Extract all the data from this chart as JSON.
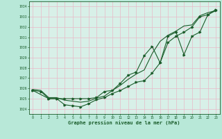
{
  "title": "Graphe pression niveau de la mer (hPa)",
  "background_color": "#b8e8d8",
  "plot_bg_color": "#d8f0e8",
  "grid_color": "#90c8b0",
  "line_color": "#1a5c2a",
  "xlim": [
    -0.5,
    23.5
  ],
  "ylim": [
    1023.5,
    1034.5
  ],
  "yticks": [
    1024,
    1025,
    1026,
    1027,
    1028,
    1029,
    1030,
    1031,
    1032,
    1033,
    1034
  ],
  "xticks": [
    0,
    1,
    2,
    3,
    4,
    5,
    6,
    7,
    8,
    9,
    10,
    11,
    12,
    13,
    14,
    15,
    16,
    17,
    18,
    19,
    20,
    21,
    22,
    23
  ],
  "series1_x": [
    0,
    1,
    2,
    3,
    4,
    5,
    6,
    7,
    8,
    9,
    10,
    11,
    12,
    13,
    14,
    15,
    16,
    17,
    18,
    19,
    20,
    21,
    22,
    23
  ],
  "series1_y": [
    1025.8,
    1025.7,
    1025.0,
    1025.0,
    1024.4,
    1024.3,
    1024.2,
    1024.5,
    1024.9,
    1025.1,
    1025.5,
    1025.8,
    1026.2,
    1026.6,
    1026.75,
    1027.5,
    1028.5,
    1030.5,
    1031.1,
    1031.5,
    1032.0,
    1033.0,
    1033.2,
    1033.6
  ],
  "series2_x": [
    0,
    1,
    2,
    3,
    4,
    5,
    6,
    7,
    8,
    9,
    10,
    11,
    12,
    13,
    14,
    15,
    16,
    17,
    18,
    19,
    20,
    21,
    22,
    23
  ],
  "series2_y": [
    1025.9,
    1025.8,
    1025.1,
    1025.1,
    1024.85,
    1024.75,
    1024.65,
    1024.75,
    1025.05,
    1025.25,
    1025.8,
    1026.3,
    1026.9,
    1027.4,
    1027.8,
    1029.4,
    1030.6,
    1031.2,
    1031.6,
    1032.1,
    1032.2,
    1033.1,
    1033.4,
    1033.6
  ],
  "series3_x": [
    0,
    2,
    3,
    4,
    5,
    6,
    7,
    8,
    9,
    10,
    11,
    12,
    13,
    14,
    15,
    16,
    17,
    18,
    19,
    20,
    21,
    22,
    23
  ],
  "series3_y": [
    1025.8,
    1025.0,
    1025.0,
    1025.0,
    1025.0,
    1025.0,
    1025.0,
    1025.1,
    1025.7,
    1025.8,
    1026.5,
    1027.3,
    1027.6,
    1029.2,
    1030.1,
    1028.5,
    1031.1,
    1031.5,
    1029.3,
    1031.1,
    1031.5,
    1033.2,
    1033.7
  ]
}
